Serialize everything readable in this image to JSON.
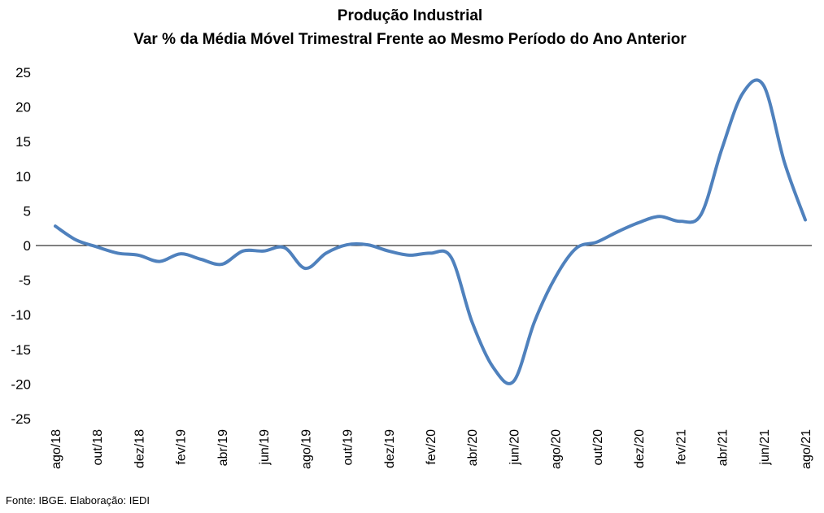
{
  "chart_data": {
    "type": "line",
    "title": "Produção Industrial",
    "subtitle": "Var % da Média Móvel Trimestral Frente ao Mesmo Período do Ano Anterior",
    "xlabel": "",
    "ylabel": "",
    "ylim": [
      -25,
      25
    ],
    "yticks": [
      25,
      20,
      15,
      10,
      5,
      0,
      -5,
      -10,
      -15,
      -20,
      -25
    ],
    "grid": false,
    "line_color": "#4F81BD",
    "zero_line_color": "#000000",
    "x": [
      "ago/18",
      "set/18",
      "out/18",
      "nov/18",
      "dez/18",
      "jan/19",
      "fev/19",
      "mar/19",
      "abr/19",
      "mai/19",
      "jun/19",
      "jul/19",
      "ago/19",
      "set/19",
      "out/19",
      "nov/19",
      "dez/19",
      "jan/20",
      "fev/20",
      "mar/20",
      "abr/20",
      "mai/20",
      "jun/20",
      "jul/20",
      "ago/20",
      "set/20",
      "out/20",
      "nov/20",
      "dez/20",
      "jan/21",
      "fev/21",
      "mar/21",
      "abr/21",
      "mai/21",
      "jun/21",
      "jul/21",
      "ago/21"
    ],
    "x_tick_labels": [
      "ago/18",
      "out/18",
      "dez/18",
      "fev/19",
      "abr/19",
      "jun/19",
      "ago/19",
      "out/19",
      "dez/19",
      "fev/20",
      "abr/20",
      "jun/20",
      "ago/20",
      "out/20",
      "dez/20",
      "fev/21",
      "abr/21",
      "jun/21",
      "ago/21"
    ],
    "series": [
      {
        "values": [
          2.8,
          0.8,
          -0.2,
          -1.1,
          -1.4,
          -2.3,
          -1.2,
          -2.0,
          -2.7,
          -0.8,
          -0.8,
          -0.3,
          -3.3,
          -1.1,
          0.1,
          0.1,
          -0.8,
          -1.4,
          -1.1,
          -1.7,
          -11.0,
          -17.5,
          -19.6,
          -11.0,
          -4.6,
          -0.4,
          0.5,
          2.0,
          3.3,
          4.2,
          3.5,
          4.5,
          14.0,
          22.0,
          23.1,
          12.0,
          3.7
        ]
      }
    ]
  },
  "footer": {
    "source": "Fonte: IBGE. Elaboração: IEDI"
  }
}
